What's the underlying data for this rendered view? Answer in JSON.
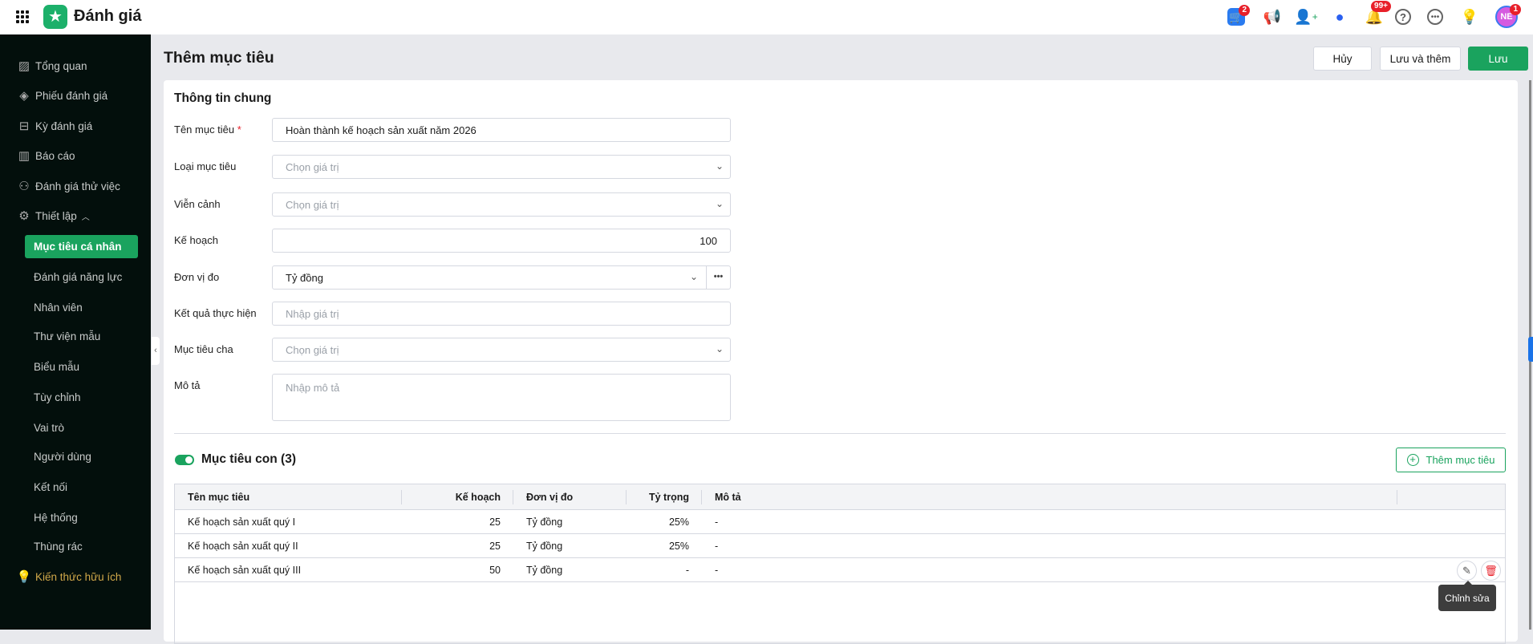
{
  "header": {
    "app_title": "Đánh giá",
    "badges": {
      "cart": "2",
      "notifications": "99+",
      "avatar": "1"
    },
    "avatar_initials": "NE"
  },
  "sidebar": {
    "items": [
      {
        "label": "Tổng quan",
        "icon": "chart-icon"
      },
      {
        "label": "Phiếu đánh giá",
        "icon": "layers-icon"
      },
      {
        "label": "Kỳ đánh giá",
        "icon": "presentation-icon"
      },
      {
        "label": "Báo cáo",
        "icon": "report-icon"
      },
      {
        "label": "Đánh giá thử việc",
        "icon": "user-clock-icon"
      },
      {
        "label": "Thiết lập",
        "icon": "gear-icon"
      }
    ],
    "sub_items": [
      "Mục tiêu cá nhân",
      "Đánh giá năng lực",
      "Nhân viên",
      "Thư viện mẫu",
      "Biểu mẫu",
      "Tùy chỉnh",
      "Vai trò",
      "Người dùng",
      "Kết nối",
      "Hệ thống",
      "Thùng rác"
    ],
    "knowledge": "Kiến thức hữu ích"
  },
  "page": {
    "title": "Thêm mục tiêu",
    "cancel": "Hủy",
    "save_add": "Lưu và thêm",
    "save": "Lưu"
  },
  "form": {
    "section": "Thông tin chung",
    "required_mark": "*",
    "name_label": "Tên mục tiêu",
    "name_value": "Hoàn thành kế hoạch sản xuất năm 2026",
    "type_label": "Loại mục tiêu",
    "type_placeholder": "Chọn giá trị",
    "vision_label": "Viễn cảnh",
    "vision_placeholder": "Chọn giá trị",
    "plan_label": "Kế hoạch",
    "plan_value": "100",
    "unit_label": "Đơn vị đo",
    "unit_value": "Tỷ đồng",
    "result_label": "Kết quả thực hiện",
    "result_placeholder": "Nhập giá trị",
    "parent_label": "Mục tiêu cha",
    "parent_placeholder": "Chọn giá trị",
    "desc_label": "Mô tả",
    "desc_placeholder": "Nhập mô tả"
  },
  "children": {
    "title": "Mục tiêu con (3)",
    "toggle_on": true,
    "add_label": "Thêm mục tiêu",
    "columns": [
      "Tên mục tiêu",
      "Kế hoạch",
      "Đơn vị đo",
      "Tỷ trọng",
      "Mô tả"
    ],
    "rows": [
      [
        "Kế hoạch sản xuất quý I",
        "25",
        "Tỷ đồng",
        "25%",
        "-"
      ],
      [
        "Kế hoạch sản xuất quý II",
        "25",
        "Tỷ đồng",
        "25%",
        "-"
      ],
      [
        "Kế hoạch sản xuất quý III",
        "50",
        "Tỷ đồng",
        "-",
        "-"
      ]
    ],
    "tooltip": "Chỉnh sửa"
  },
  "colors": {
    "accent": "#1aa35e",
    "sidebar": "#030f0c",
    "danger": "#e8202a"
  }
}
